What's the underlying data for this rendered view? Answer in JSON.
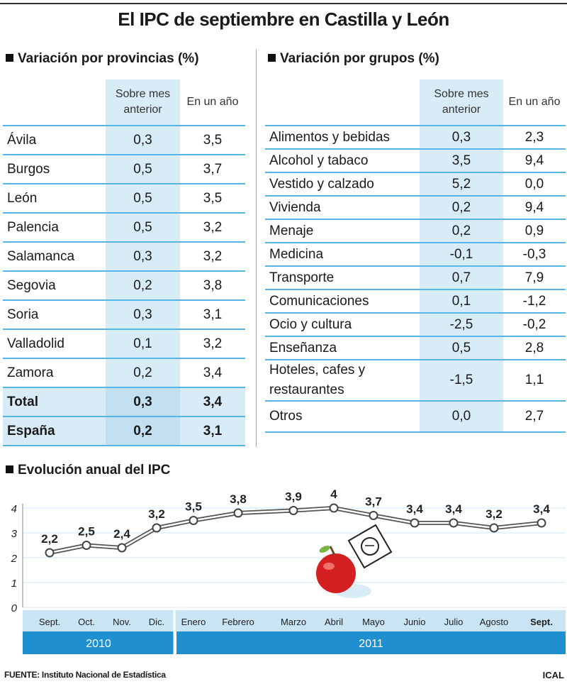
{
  "title": "El IPC de septiembre en Castilla y León",
  "provincias": {
    "title": "Variación por provincias (%)",
    "col1": "Sobre mes anterior",
    "col2": "En un año",
    "rows": [
      {
        "name": "Ávila",
        "mes": "0,3",
        "anio": "3,5"
      },
      {
        "name": "Burgos",
        "mes": "0,5",
        "anio": "3,7"
      },
      {
        "name": "León",
        "mes": "0,5",
        "anio": "3,5"
      },
      {
        "name": "Palencia",
        "mes": "0,5",
        "anio": "3,2"
      },
      {
        "name": "Salamanca",
        "mes": "0,3",
        "anio": "3,2"
      },
      {
        "name": "Segovia",
        "mes": "0,2",
        "anio": "3,8"
      },
      {
        "name": "Soria",
        "mes": "0,3",
        "anio": "3,1"
      },
      {
        "name": "Valladolid",
        "mes": "0,1",
        "anio": "3,2"
      },
      {
        "name": "Zamora",
        "mes": "0,2",
        "anio": "3,4"
      },
      {
        "name": "Total",
        "mes": "0,3",
        "anio": "3,4"
      },
      {
        "name": "España",
        "mes": "0,2",
        "anio": "3,1"
      }
    ]
  },
  "grupos": {
    "title": "Variación por grupos (%)",
    "col1": "Sobre mes anterior",
    "col2": "En un año",
    "rows": [
      {
        "name": "Alimentos y bebidas",
        "mes": "0,3",
        "anio": "2,3"
      },
      {
        "name": "Alcohol y tabaco",
        "mes": "3,5",
        "anio": "9,4"
      },
      {
        "name": "Vestido y calzado",
        "mes": "5,2",
        "anio": "0,0"
      },
      {
        "name": "Vivienda",
        "mes": "0,2",
        "anio": "9,4"
      },
      {
        "name": "Menaje",
        "mes": "0,2",
        "anio": "0,9"
      },
      {
        "name": "Medicina",
        "mes": "-0,1",
        "anio": "-0,3"
      },
      {
        "name": "Transporte",
        "mes": "0,7",
        "anio": "7,9"
      },
      {
        "name": "Comunicaciones",
        "mes": "0,1",
        "anio": "-1,2"
      },
      {
        "name": "Ocio y cultura",
        "mes": "-2,5",
        "anio": "-0,2"
      },
      {
        "name": "Enseñanza",
        "mes": "0,5",
        "anio": "2,8"
      },
      {
        "name": "Hoteles, cafes y restaurantes",
        "mes": "-1,5",
        "anio": "1,1"
      },
      {
        "name": "Otros",
        "mes": "0,0",
        "anio": "2,7"
      }
    ]
  },
  "evolucion_title": "Evolución anual del IPC",
  "chart_data": {
    "type": "line",
    "title": "Evolución anual del IPC",
    "categories": [
      "Sept.",
      "Oct.",
      "Nov.",
      "Dic.",
      "Enero",
      "Febrero",
      "Marzo",
      "Abril",
      "Mayo",
      "Junio",
      "Julio",
      "Agosto",
      "Sept."
    ],
    "values": [
      2.2,
      2.5,
      2.4,
      3.2,
      3.5,
      3.8,
      3.9,
      4,
      3.7,
      3.4,
      3.4,
      3.2,
      3.4
    ],
    "labels": [
      "2,2",
      "2,5",
      "2,4",
      "3,2",
      "3,5",
      "3,8",
      "3,9",
      "4",
      "3,7",
      "3,4",
      "3,4",
      "3,2",
      "3,4"
    ],
    "years": [
      {
        "label": "2010",
        "count": 4
      },
      {
        "label": "2011",
        "count": 9
      }
    ],
    "ylim": [
      0,
      4
    ],
    "yticks": [
      0,
      1,
      2,
      3,
      4
    ],
    "grid": true,
    "colors": {
      "band": "#1f8fd0",
      "axis_bg": "#c9e4f3",
      "line": "#555555",
      "grid": "#cfe6f4"
    }
  },
  "footer": {
    "source": "FUENTE: Instituto Nacional de Estadística",
    "credit": "ICAL"
  }
}
